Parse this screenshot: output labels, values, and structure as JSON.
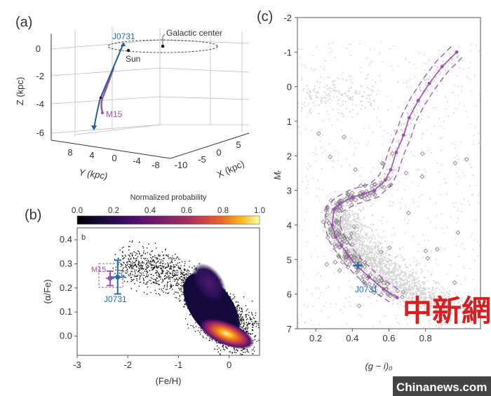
{
  "panel_labels": {
    "a": "(a)",
    "b": "(b)",
    "c": "(c)"
  },
  "colors": {
    "j0731": "#1f6fa8",
    "m15": "#a04fb0",
    "background_stars": "#d3d3d3",
    "diamond": "#888888",
    "watermark": "#d81e1e"
  },
  "watermark": {
    "chinese": "中新網",
    "site": "Chinanews.com"
  },
  "chart_data": [
    {
      "type": "line",
      "panel": "a",
      "projection": "3d",
      "xlabel": "X (kpc)",
      "ylabel": "Y (kpc)",
      "zlabel": "Z (kpc)",
      "xticks": [
        "-10",
        "-5",
        "0",
        "5"
      ],
      "yticks": [
        "8",
        "4",
        "0",
        "-4",
        "-8"
      ],
      "zticks": [
        "0",
        "-2",
        "-4",
        "-6"
      ],
      "annotations": {
        "galactic_center": "Galactic center",
        "sun": "Sun"
      },
      "series": [
        {
          "name": "J0731",
          "color": "#1f6fa8"
        },
        {
          "name": "M15",
          "color": "#a04fb0"
        }
      ]
    },
    {
      "type": "heatmap",
      "panel": "b",
      "inner_label": "b",
      "xlabel": "(Fe/H)",
      "ylabel": "(α/Fe)",
      "xlim": [
        -3,
        0.6
      ],
      "ylim": [
        -0.08,
        0.45
      ],
      "xticks": [
        "-3",
        "-2",
        "-1",
        "0"
      ],
      "yticks": [
        "0.0",
        "0.1",
        "0.2",
        "0.3",
        "0.4"
      ],
      "colorbar": {
        "label": "Normalized probability",
        "ticks": [
          "0.0",
          "0.2",
          "0.4",
          "0.6",
          "0.8",
          "1.0"
        ],
        "colormap": "inferno",
        "range": [
          0,
          1
        ]
      },
      "points": [
        {
          "name": "M15",
          "x": -2.35,
          "y": 0.24,
          "xerr": 0.08,
          "yerr": 0.03,
          "color": "#a04fb0"
        },
        {
          "name": "J0731",
          "x": -2.2,
          "y": 0.245,
          "xerr": 0.15,
          "yerr": 0.07,
          "color": "#1f6fa8"
        }
      ],
      "density_peaks": [
        {
          "x": -0.05,
          "y": 0.01,
          "level": 1.0
        },
        {
          "x": -0.35,
          "y": 0.22,
          "level": 0.3
        }
      ]
    },
    {
      "type": "scatter",
      "panel": "c",
      "xlabel": "(g − i)₀",
      "ylabel": "Mᵣ",
      "xlim": [
        0.1,
        1.1
      ],
      "ylim": [
        7,
        -2
      ],
      "xticks": [
        "0.2",
        "0.4",
        "0.6",
        "0.8"
      ],
      "yticks": [
        "-2",
        "-1",
        "0",
        "1",
        "2",
        "3",
        "4",
        "5",
        "6",
        "7"
      ],
      "ridge_line": {
        "color": "#a04fb0",
        "x": [
          0.97,
          0.89,
          0.82,
          0.76,
          0.71,
          0.68,
          0.64,
          0.61,
          0.58,
          0.52,
          0.46,
          0.4,
          0.33,
          0.3,
          0.29,
          0.31,
          0.34,
          0.38,
          0.43,
          0.49,
          0.57,
          0.645
        ],
        "y": [
          -1.0,
          -0.58,
          -0.09,
          0.4,
          0.9,
          1.4,
          1.9,
          2.4,
          2.7,
          3.0,
          3.1,
          3.2,
          3.4,
          3.55,
          4.0,
          4.35,
          4.6,
          4.9,
          5.2,
          5.5,
          5.85,
          6.1
        ]
      },
      "highlight": {
        "name": "J0731",
        "x": 0.43,
        "y": 5.17,
        "color": "#1f6fa8"
      }
    }
  ]
}
